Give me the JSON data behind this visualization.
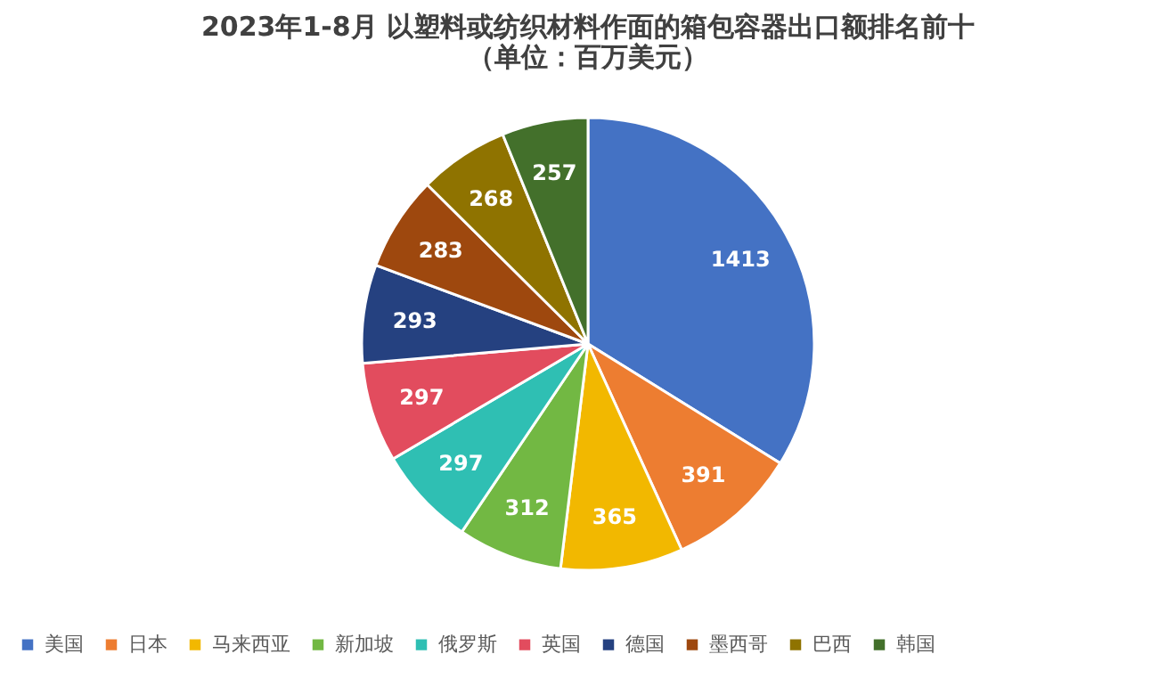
{
  "chart_data": {
    "type": "pie",
    "title": "2023年1-8月 以塑料或纺织材料作面的箱包容器出口额排名前十",
    "subtitle": "（单位：百万美元）",
    "categories": [
      "美国",
      "日本",
      "马来西亚",
      "新加坡",
      "俄罗斯",
      "英国",
      "德国",
      "墨西哥",
      "巴西",
      "韩国"
    ],
    "values": [
      1413,
      391,
      365,
      312,
      297,
      297,
      293,
      283,
      268,
      257
    ],
    "colors": [
      "#4472c4",
      "#ed7d31",
      "#f2b800",
      "#72b843",
      "#2fbfb3",
      "#e24c5e",
      "#254180",
      "#9e480e",
      "#8f7300",
      "#43702b"
    ],
    "data_labels": true,
    "legend": "bottom"
  }
}
